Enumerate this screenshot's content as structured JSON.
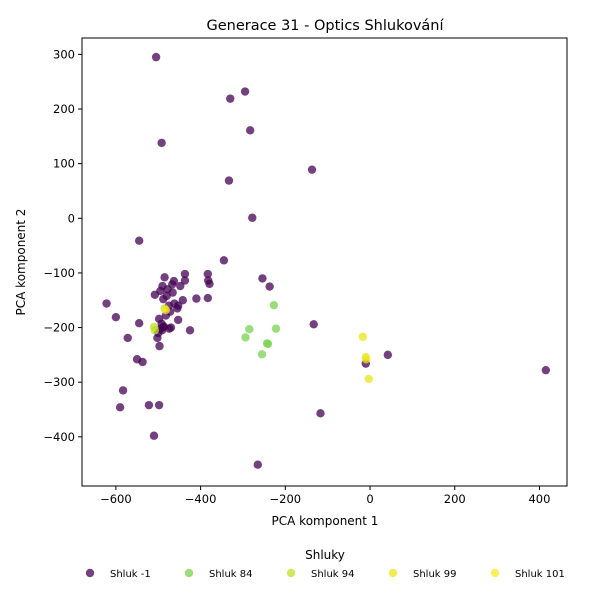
{
  "chart_data": {
    "type": "scatter",
    "title": "Generace 31 - Optics Shlukování",
    "xlabel": "PCA komponent 1",
    "ylabel": "PCA komponent 2",
    "xlim": [
      -680,
      465
    ],
    "ylim": [
      -490,
      330
    ],
    "xticks": [
      -600,
      -400,
      -200,
      0,
      200,
      400
    ],
    "yticks": [
      -400,
      -300,
      -200,
      -100,
      0,
      100,
      200,
      300
    ],
    "grid": false,
    "legend_title": "Shluky",
    "legend_position": "bottom",
    "series": [
      {
        "name": "Shluk -1",
        "color": "#440154",
        "points": [
          [
            -505,
            295
          ],
          [
            -330,
            219
          ],
          [
            -295,
            232
          ],
          [
            -283,
            161
          ],
          [
            -492,
            138
          ],
          [
            -333,
            69
          ],
          [
            -137,
            89
          ],
          [
            -278,
            1
          ],
          [
            -545,
            -41
          ],
          [
            -345,
            -77
          ],
          [
            -383,
            -102
          ],
          [
            -437,
            -102
          ],
          [
            -485,
            -108
          ],
          [
            -254,
            -110
          ],
          [
            -382,
            -114
          ],
          [
            -463,
            -115
          ],
          [
            -437,
            -114
          ],
          [
            -379,
            -120
          ],
          [
            -467,
            -121
          ],
          [
            -448,
            -124
          ],
          [
            -490,
            -124
          ],
          [
            -237,
            -125
          ],
          [
            -478,
            -130
          ],
          [
            -495,
            -133
          ],
          [
            -466,
            -136
          ],
          [
            -508,
            -140
          ],
          [
            -480,
            -142
          ],
          [
            -383,
            -146
          ],
          [
            -410,
            -147
          ],
          [
            -488,
            -148
          ],
          [
            -442,
            -150
          ],
          [
            -622,
            -156
          ],
          [
            -462,
            -156
          ],
          [
            -475,
            -160
          ],
          [
            -453,
            -160
          ],
          [
            -455,
            -165
          ],
          [
            -472,
            -171
          ],
          [
            -600,
            -181
          ],
          [
            -482,
            -178
          ],
          [
            -498,
            -184
          ],
          [
            -453,
            -186
          ],
          [
            -545,
            -192
          ],
          [
            -133,
            -194
          ],
          [
            -492,
            -193
          ],
          [
            -487,
            -198
          ],
          [
            -488,
            -199
          ],
          [
            -474,
            -202
          ],
          [
            -496,
            -203
          ],
          [
            -491,
            -205
          ],
          [
            -425,
            -205
          ],
          [
            -470,
            -200
          ],
          [
            -500,
            -210
          ],
          [
            -572,
            -219
          ],
          [
            -502,
            -219
          ],
          [
            -497,
            -234
          ],
          [
            -550,
            -258
          ],
          [
            -537,
            -263
          ],
          [
            -10,
            -266
          ],
          [
            42,
            -250
          ],
          [
            415,
            -278
          ],
          [
            -583,
            -315
          ],
          [
            -590,
            -346
          ],
          [
            -522,
            -342
          ],
          [
            -498,
            -342
          ],
          [
            -117,
            -357
          ],
          [
            -510,
            -398
          ],
          [
            -265,
            -451
          ]
        ]
      },
      {
        "name": "Shluk 84",
        "color": "#7ad151",
        "points": [
          [
            -227,
            -159
          ],
          [
            -285,
            -203
          ],
          [
            -222,
            -202
          ],
          [
            -294,
            -218
          ],
          [
            -243,
            -229
          ],
          [
            -241,
            -230
          ],
          [
            -255,
            -249
          ]
        ]
      },
      {
        "name": "Shluk 94",
        "color": "#bddf26",
        "points": [
          [
            -510,
            -199
          ],
          [
            -508,
            -205
          ],
          [
            -485,
            -165
          ]
        ]
      },
      {
        "name": "Shluk 99",
        "color": "#e8e419",
        "points": [
          [
            -17,
            -217
          ],
          [
            -10,
            -254
          ],
          [
            -9,
            -258
          ],
          [
            -3,
            -294
          ]
        ]
      },
      {
        "name": "Shluk 101",
        "color": "#fde725",
        "points": [
          [
            -482,
            -168
          ]
        ]
      }
    ]
  }
}
